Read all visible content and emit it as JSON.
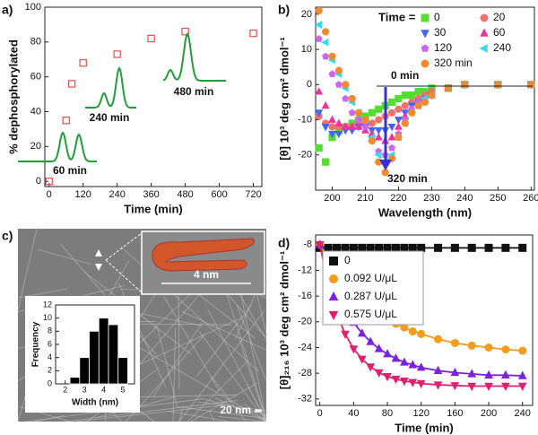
{
  "chart_data": [
    {
      "type": "scatter",
      "label": "a)",
      "xlabel": "Time (min)",
      "ylabel": "% dephosphorylated",
      "x": [
        0,
        60,
        80,
        120,
        240,
        360,
        480,
        720
      ],
      "values": [
        0,
        35,
        56,
        68,
        73,
        82,
        86,
        85
      ],
      "color": "#e05050",
      "marker": "square",
      "filled": false,
      "xlim": [
        -15,
        750
      ],
      "ylim": [
        -3,
        100
      ],
      "xticks": [
        0,
        120,
        240,
        360,
        480,
        600,
        720
      ],
      "yticks": [
        0,
        20,
        40,
        60,
        80,
        100
      ],
      "annotations": [
        "60 min",
        "240 min",
        "480 min"
      ]
    },
    {
      "type": "scatter",
      "label": "b)",
      "xlabel": "Wavelength (nm)",
      "ylabel": "[θ] 10³ deg cm² dmol⁻¹",
      "legend_title": "Time =",
      "legend": "upper right",
      "x": [
        196,
        198,
        200,
        202,
        204,
        206,
        208,
        210,
        212,
        214,
        216,
        218,
        220,
        222,
        224,
        226,
        228,
        230,
        235,
        240,
        250,
        260
      ],
      "series": [
        {
          "name": "0",
          "color": "#55dd33",
          "marker": "square",
          "values": [
            -18,
            -22,
            -15,
            -13,
            -12,
            -11,
            -10,
            -9,
            -8,
            -7,
            -6,
            -5,
            -4,
            -3,
            -3,
            -2,
            -2,
            -1,
            -1,
            0,
            0,
            0
          ]
        },
        {
          "name": "20",
          "color": "#f07070",
          "marker": "circle",
          "values": [
            -9,
            -11,
            -12,
            -12,
            -12,
            -12,
            -11,
            -11,
            -11,
            -10,
            -9,
            -8,
            -7,
            -6,
            -5,
            -4,
            -3,
            -2,
            -1,
            0,
            0,
            0
          ]
        },
        {
          "name": "30",
          "color": "#4466ee",
          "marker": "tri-down",
          "values": [
            -8,
            -12,
            -14,
            -14,
            -13,
            -13,
            -12,
            -12,
            -13,
            -13,
            -13,
            -12,
            -10,
            -8,
            -6,
            -5,
            -4,
            -3,
            -1,
            0,
            0,
            0
          ]
        },
        {
          "name": "60",
          "color": "#ee3399",
          "marker": "tri-up",
          "values": [
            -2,
            -6,
            -10,
            -11,
            -12,
            -12,
            -12,
            -13,
            -14,
            -15,
            -16,
            -15,
            -12,
            -9,
            -7,
            -5,
            -4,
            -3,
            -1,
            0,
            0,
            0
          ]
        },
        {
          "name": "120",
          "color": "#cc66ee",
          "marker": "pentagon",
          "values": [
            13,
            8,
            3,
            0,
            -4,
            -8,
            -10,
            -12,
            -16,
            -19,
            -20,
            -18,
            -14,
            -10,
            -7,
            -5,
            -4,
            -3,
            -1,
            0,
            0,
            0
          ]
        },
        {
          "name": "240",
          "color": "#33ddee",
          "marker": "tri-left",
          "values": [
            17,
            12,
            7,
            3,
            -1,
            -5,
            -8,
            -10,
            -15,
            -20,
            -22,
            -20,
            -15,
            -11,
            -8,
            -6,
            -4,
            -3,
            -1,
            0,
            0,
            0
          ]
        },
        {
          "name": "320 min",
          "color": "#f08a30",
          "marker": "circle",
          "values": [
            21,
            15,
            8,
            4,
            0,
            -4,
            -8,
            -10,
            -16,
            -22,
            -25,
            -21,
            -15,
            -11,
            -8,
            -6,
            -5,
            -3,
            -1,
            0,
            0,
            0
          ]
        }
      ],
      "xlim": [
        195,
        261
      ],
      "ylim": [
        -30,
        22
      ],
      "xticks": [
        200,
        210,
        220,
        230,
        240,
        250,
        260
      ],
      "yticks": [
        -20,
        -10,
        0,
        10,
        20
      ],
      "annotations": [
        "0 min",
        "320 min"
      ]
    },
    {
      "type": "histogram",
      "label": "c)",
      "xlabel": "Width (nm)",
      "ylabel": "Frequency",
      "bins": [
        2.25,
        2.75,
        3.25,
        3.75,
        4.25,
        4.75,
        5.25
      ],
      "values": [
        1,
        4,
        8,
        10,
        9,
        4
      ],
      "color": "#000000",
      "xlim": [
        1.5,
        5.6
      ],
      "ylim": [
        0,
        12
      ],
      "xticks": [
        2,
        3,
        4,
        5
      ],
      "yticks": [
        0,
        2,
        4,
        6,
        8,
        10,
        12
      ],
      "annotations": [
        "4 nm",
        "20 nm"
      ]
    },
    {
      "type": "line",
      "label": "d)",
      "xlabel": "Time (min)",
      "ylabel": "[θ]₂₁₆ 10³ deg cm² dmol⁻¹",
      "legend": "upper left",
      "x": [
        0,
        10,
        20,
        30,
        40,
        50,
        60,
        70,
        80,
        90,
        100,
        110,
        120,
        140,
        160,
        180,
        200,
        220,
        240
      ],
      "series": [
        {
          "name": "0",
          "color": "#111111",
          "marker": "square",
          "values": [
            -8.5,
            -8.5,
            -8.5,
            -8.5,
            -8.5,
            -8.5,
            -8.5,
            -8.5,
            -8.5,
            -8.5,
            -8.5,
            -8.5,
            -8.5,
            -8.5,
            -8.5,
            -8.5,
            -8.5,
            -8.5,
            -8.5
          ]
        },
        {
          "name": "0.092 U/μL",
          "color": "#f39c1e",
          "marker": "circle",
          "values": [
            -8,
            -10.3,
            -12.2,
            -13.9,
            -15.4,
            -16.7,
            -17.8,
            -18.7,
            -19.6,
            -20.3,
            -20.9,
            -21.5,
            -21.9,
            -22.7,
            -23.3,
            -23.7,
            -24.0,
            -24.3,
            -24.5
          ]
        },
        {
          "name": "0.287 U/μL",
          "color": "#7a22dd",
          "marker": "tri-up",
          "values": [
            -8,
            -12.1,
            -15.4,
            -18.0,
            -20.1,
            -21.8,
            -23.1,
            -24.2,
            -25.0,
            -25.7,
            -26.3,
            -26.7,
            -27.1,
            -27.6,
            -27.9,
            -28.1,
            -28.3,
            -28.3,
            -28.4
          ]
        },
        {
          "name": "0.575 U/μL",
          "color": "#e0206e",
          "marker": "tri-down",
          "values": [
            -8,
            -14.2,
            -18.7,
            -21.9,
            -24.2,
            -25.8,
            -27.0,
            -27.9,
            -28.5,
            -28.9,
            -29.2,
            -29.4,
            -29.6,
            -29.8,
            -29.9,
            -30,
            -30,
            -30,
            -30
          ]
        }
      ],
      "xlim": [
        -5,
        252
      ],
      "ylim": [
        -33,
        -6.5
      ],
      "xticks": [
        0,
        40,
        80,
        120,
        160,
        200,
        240
      ],
      "yticks": [
        -8,
        -12,
        -16,
        -20,
        -24,
        -28,
        -32
      ]
    }
  ]
}
